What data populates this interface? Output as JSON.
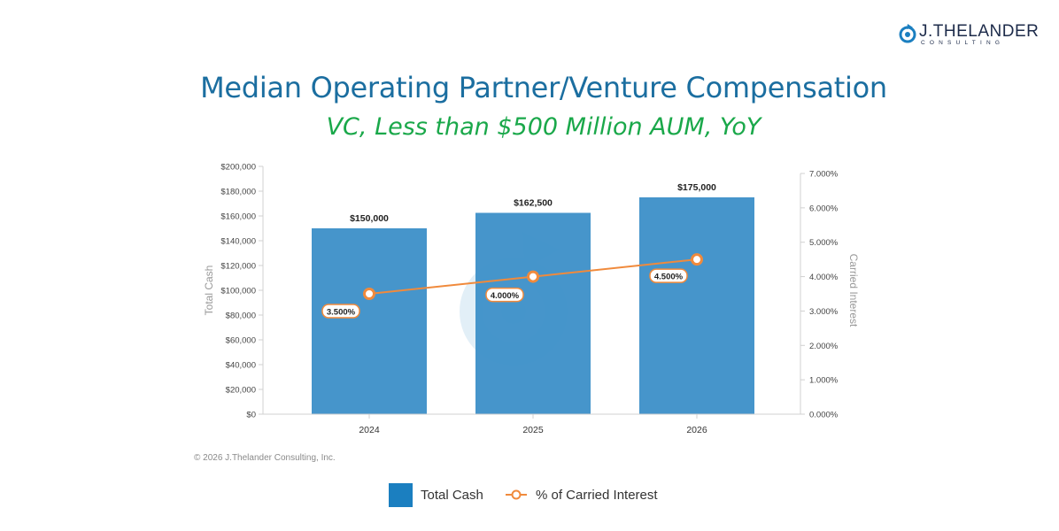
{
  "brand": {
    "name": "J.THELANDER",
    "sub": "CONSULTING",
    "color": "#1d2b4a",
    "accent": "#1b7fc0",
    "icon": "spiral-logo-icon"
  },
  "title": "Median Operating Partner/Venture Compensation",
  "subtitle": "VC, Less than $500 Million AUM, YoY",
  "copyright": "© 2026 J.Thelander Consulting, Inc.",
  "colors": {
    "title": "#1b6ea0",
    "subtitle": "#1aa84a",
    "bar": "#3c8fc8",
    "line": "#f08a3c"
  },
  "chart_data": {
    "type": "bar",
    "categories": [
      "2024",
      "2025",
      "2026"
    ],
    "series": [
      {
        "name": "Total Cash",
        "type": "bar",
        "axis": "left",
        "values": [
          150000,
          162500,
          175000
        ],
        "labels": [
          "$150,000",
          "$162,500",
          "$175,000"
        ],
        "color": "#3c8fc8"
      },
      {
        "name": "% of Carried Interest",
        "type": "line",
        "axis": "right",
        "values": [
          3.5,
          4.0,
          4.5
        ],
        "labels": [
          "3.500%",
          "4.000%",
          "4.500%"
        ],
        "color": "#f08a3c"
      }
    ],
    "ylabel": "Total Cash",
    "ylabel_right": "Carried Interest",
    "ylim": [
      0,
      200000
    ],
    "ylim_right": [
      0,
      7
    ],
    "yticks": [
      "$0",
      "$20,000",
      "$40,000",
      "$60,000",
      "$80,000",
      "$100,000",
      "$120,000",
      "$140,000",
      "$160,000",
      "$180,000",
      "$200,000"
    ],
    "yticks_right": [
      "0.000%",
      "1.000%",
      "2.000%",
      "3.000%",
      "4.000%",
      "5.000%",
      "6.000%",
      "7.000%"
    ],
    "grid": false,
    "legend_position": "bottom"
  }
}
